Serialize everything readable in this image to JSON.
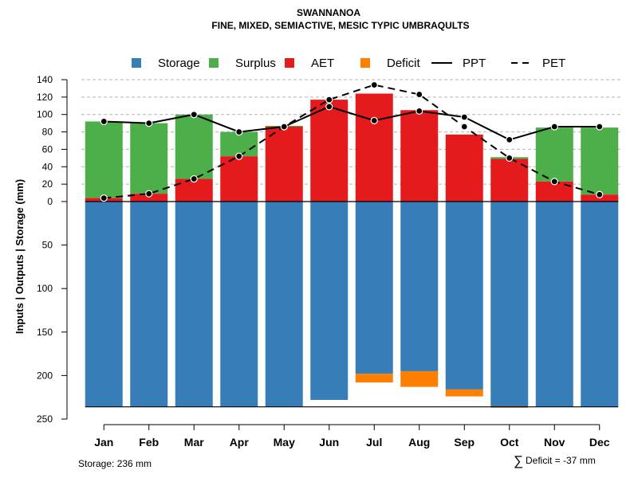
{
  "chart_data": {
    "type": "bar",
    "title": "SWANNANOA",
    "subtitle": "FINE, MIXED, SEMIACTIVE, MESIC TYPIC UMBRAQULTS",
    "ylabel": "Inputs | Outputs | Storage     (mm)",
    "categories": [
      "Jan",
      "Feb",
      "Mar",
      "Apr",
      "May",
      "Jun",
      "Jul",
      "Aug",
      "Sep",
      "Oct",
      "Nov",
      "Dec"
    ],
    "y_upper_ticks": [
      "0",
      "20",
      "40",
      "60",
      "80",
      "100",
      "120",
      "140"
    ],
    "y_lower_ticks": [
      "50",
      "100",
      "150",
      "200",
      "250"
    ],
    "ylim_upper": [
      0,
      140
    ],
    "ylim_lower": [
      0,
      250
    ],
    "storage_capacity": 236,
    "series": [
      {
        "name": "Storage",
        "color": "#377EB8",
        "values": [
          236,
          236,
          236,
          236,
          236,
          228,
          198,
          195,
          216,
          236,
          236,
          236
        ]
      },
      {
        "name": "Surplus",
        "color": "#4DAF4A",
        "values": [
          88,
          81,
          74,
          28,
          1,
          0,
          0,
          0,
          0,
          2,
          62,
          77
        ]
      },
      {
        "name": "AET",
        "color": "#E41A1C",
        "values": [
          4,
          9,
          26,
          52,
          86,
          117,
          124,
          105,
          77,
          49,
          23,
          8
        ]
      },
      {
        "name": "Deficit",
        "color": "#FF7F00",
        "values": [
          0,
          0,
          0,
          0,
          0,
          0,
          10,
          18,
          8,
          1,
          0,
          0
        ]
      },
      {
        "name": "PPT",
        "color": "#000000",
        "values": [
          92,
          90,
          100,
          80,
          86,
          109,
          93,
          104,
          97,
          71,
          86,
          86
        ]
      },
      {
        "name": "PET",
        "color": "#000000",
        "values": [
          4,
          9,
          26,
          52,
          86,
          117,
          134,
          123,
          86,
          50,
          23,
          8
        ]
      }
    ],
    "legend": [
      {
        "label": "Storage",
        "kind": "box",
        "color": "#377EB8"
      },
      {
        "label": "Surplus",
        "kind": "box",
        "color": "#4DAF4A"
      },
      {
        "label": "AET",
        "kind": "box",
        "color": "#E41A1C"
      },
      {
        "label": "Deficit",
        "kind": "box",
        "color": "#FF7F00"
      },
      {
        "label": "PPT",
        "kind": "solid"
      },
      {
        "label": "PET",
        "kind": "dashed"
      }
    ],
    "legend_position": "top"
  },
  "footer": {
    "storage_note": "Storage: 236 mm",
    "deficit_symbol": "∑",
    "deficit_note": "Deficit = -37 mm"
  }
}
